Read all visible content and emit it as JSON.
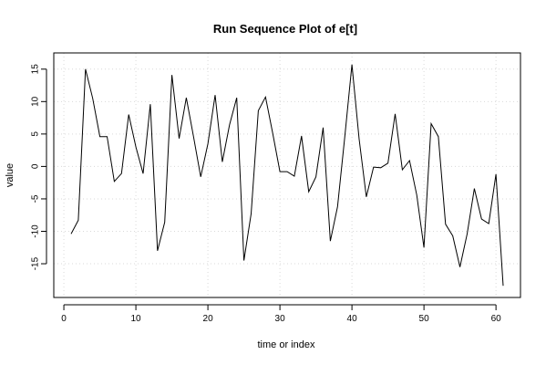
{
  "chart_data": {
    "type": "line",
    "title": "Run Sequence Plot of e[t]",
    "xlabel": "time or index",
    "ylabel": "value",
    "xlim": [
      -1.4,
      63.4
    ],
    "ylim": [
      -20.2,
      17.5
    ],
    "x_ticks": [
      0,
      10,
      20,
      30,
      40,
      50,
      60
    ],
    "y_ticks": [
      -15,
      -10,
      -5,
      0,
      5,
      10,
      15
    ],
    "grid": true,
    "series": [
      {
        "x": [
          1,
          2,
          3,
          4,
          5,
          6,
          7,
          8,
          9,
          10,
          11,
          12,
          13,
          14,
          15,
          16,
          17,
          18,
          19,
          20,
          21,
          22,
          23,
          24,
          25,
          26,
          27,
          28,
          29,
          30,
          31,
          32,
          33,
          34,
          35,
          36,
          37,
          38,
          39,
          40,
          41,
          42,
          43,
          44,
          45,
          46,
          47,
          48,
          49,
          50,
          51,
          52,
          53,
          54,
          55,
          56,
          57,
          58,
          59,
          60,
          61
        ],
        "values": [
          -10.4,
          -8.3,
          15.0,
          10.5,
          4.6,
          4.6,
          -2.3,
          -1.1,
          8.0,
          3.0,
          -1.1,
          9.6,
          -13.0,
          -8.6,
          14.1,
          4.3,
          10.6,
          4.6,
          -1.6,
          3.5,
          11.0,
          0.7,
          6.4,
          10.6,
          -14.5,
          -7.3,
          8.6,
          10.7,
          5.1,
          -0.8,
          -0.8,
          -1.5,
          4.7,
          -3.9,
          -1.6,
          6.0,
          -11.5,
          -6.2,
          4.5,
          15.7,
          4.2,
          -4.7,
          -0.1,
          -0.2,
          0.5,
          8.1,
          -0.5,
          0.9,
          -4.4,
          -12.5,
          6.6,
          4.6,
          -8.9,
          -10.7,
          -15.5,
          -10.4,
          -3.4,
          -8.1,
          -8.8,
          -1.2,
          -18.4
        ]
      }
    ]
  }
}
